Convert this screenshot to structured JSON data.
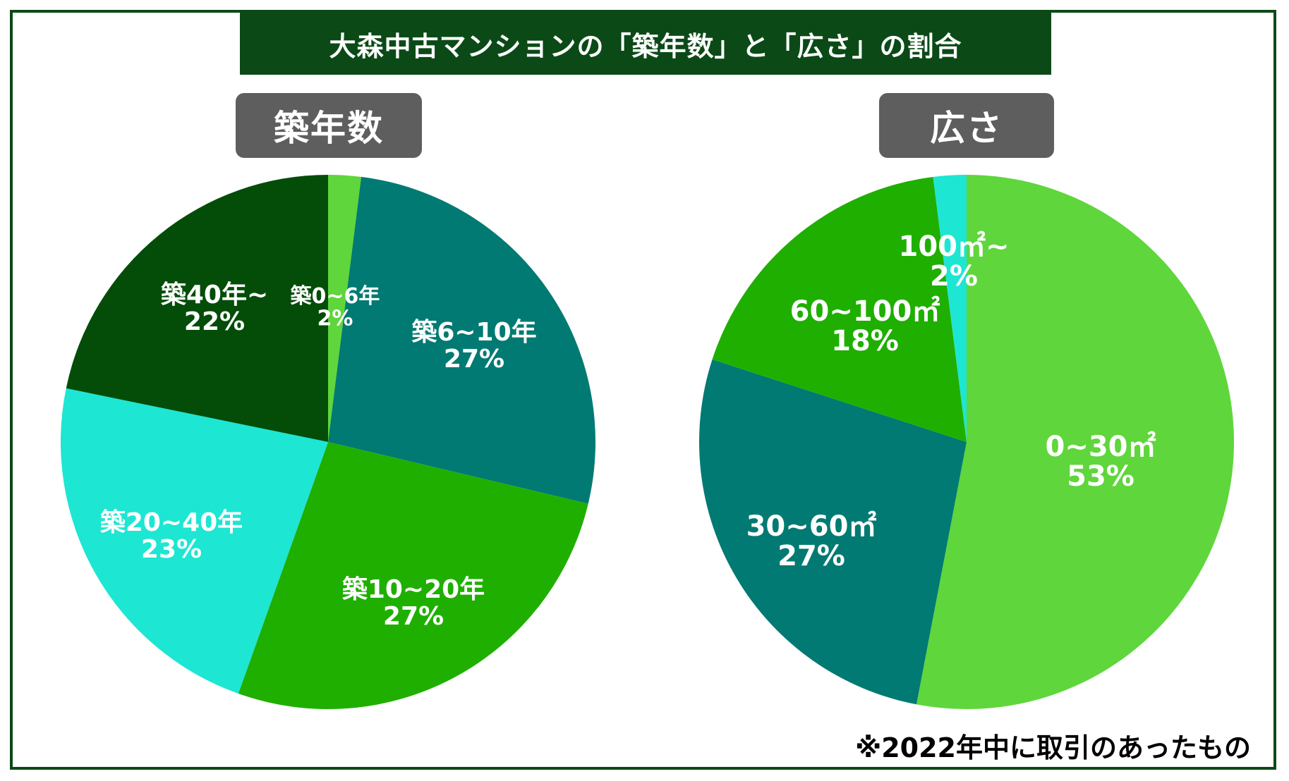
{
  "title": "大森中古マンションの「築年数」と「広さ」の割合",
  "footnote": "※2022年中に取引のあったもの",
  "colors": {
    "frame": "#0b4a17",
    "label_bg": "#5e5e5e",
    "light_green": "#5fd63b",
    "teal": "#007a72",
    "green": "#1faf00",
    "cyan": "#1de6d3",
    "dark_green": "#034d09"
  },
  "chart_data": [
    {
      "type": "pie",
      "title": "築年数",
      "slices": [
        {
          "label": "築0~6年",
          "value": 2,
          "pct_label": "2%",
          "color": "#5fd63b"
        },
        {
          "label": "築6~10年",
          "value": 27,
          "pct_label": "27%",
          "color": "#007a72"
        },
        {
          "label": "築10~20年",
          "value": 27,
          "pct_label": "27%",
          "color": "#1faf00"
        },
        {
          "label": "築20~40年",
          "value": 23,
          "pct_label": "23%",
          "color": "#1de6d3"
        },
        {
          "label": "築40年~",
          "value": 22,
          "pct_label": "22%",
          "color": "#034d09"
        }
      ]
    },
    {
      "type": "pie",
      "title": "広さ",
      "slices": [
        {
          "label": "0~30㎡",
          "value": 53,
          "pct_label": "53%",
          "color": "#5fd63b"
        },
        {
          "label": "30~60㎡",
          "value": 27,
          "pct_label": "27%",
          "color": "#007a72"
        },
        {
          "label": "60~100㎡",
          "value": 18,
          "pct_label": "18%",
          "color": "#1faf00"
        },
        {
          "label": "100㎡~",
          "value": 2,
          "pct_label": "2%",
          "color": "#1de6d3"
        }
      ]
    }
  ]
}
